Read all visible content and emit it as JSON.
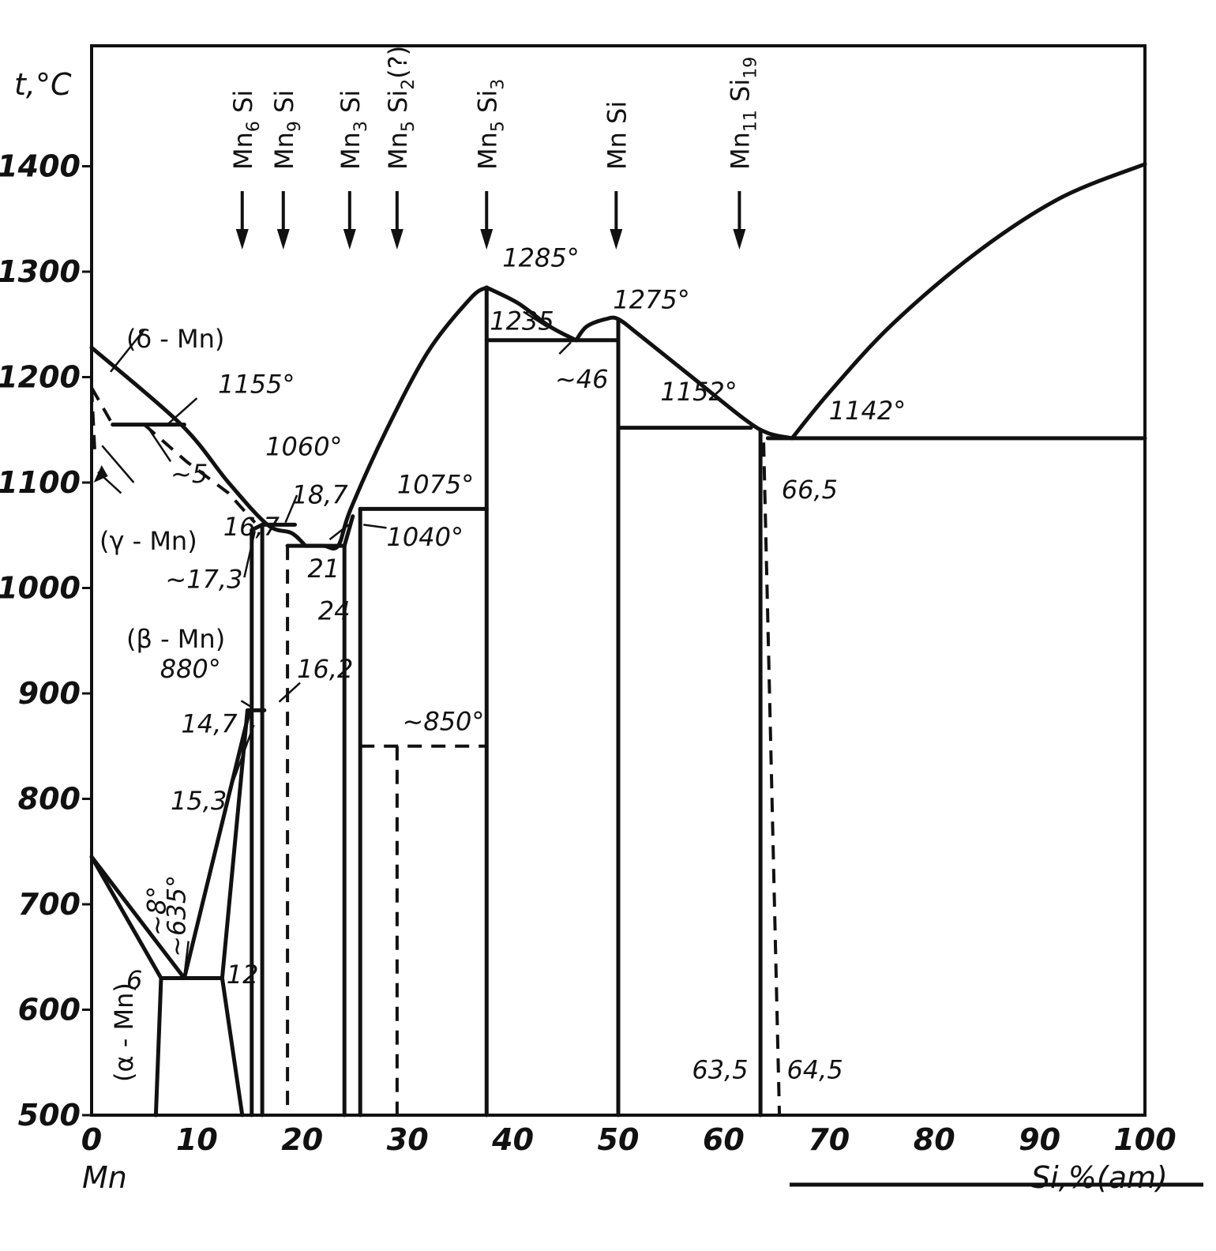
{
  "chart_data": {
    "type": "phase-diagram",
    "ylabel": "t,°C",
    "xlabel_left": "Mn",
    "xlabel_right": "Si,%(am)",
    "xlim": [
      0,
      100
    ],
    "ylim": [
      500,
      1500
    ],
    "x_ticks": [
      0,
      10,
      20,
      30,
      40,
      50,
      60,
      70,
      80,
      90,
      100
    ],
    "y_ticks": [
      500,
      600,
      700,
      800,
      900,
      1000,
      1100,
      1200,
      1300,
      1400
    ],
    "compounds": [
      {
        "label": "Mn6 Si",
        "main": "Mn",
        "sub1": "6",
        "mid": " Si",
        "sub2": "",
        "tail": "",
        "x": 14.3
      },
      {
        "label": "Mn9 Si",
        "main": "Mn",
        "sub1": "9",
        "mid": " Si",
        "sub2": "",
        "tail": "",
        "x": 18.2
      },
      {
        "label": "Mn3 Si",
        "main": "Mn",
        "sub1": "3",
        "mid": " Si",
        "sub2": "",
        "tail": "",
        "x": 24.5
      },
      {
        "label": "Mn5 Si2 (?)",
        "main": "Mn",
        "sub1": "5",
        "mid": " Si",
        "sub2": "2",
        "tail": "(?)",
        "x": 29
      },
      {
        "label": "Mn5 Si3",
        "main": "Mn",
        "sub1": "5",
        "mid": " Si",
        "sub2": "3",
        "tail": "",
        "x": 37.5
      },
      {
        "label": "Mn Si",
        "main": "Mn",
        "sub1": "",
        "mid": " Si",
        "sub2": "",
        "tail": "",
        "x": 49.8
      },
      {
        "label": "Mn11 Si19",
        "main": "Mn",
        "sub1": "11",
        "mid": " Si",
        "sub2": "19",
        "tail": "",
        "x": 61.5
      }
    ],
    "phases": [
      "(δ - Mn)",
      "(γ - Mn)",
      "(β - Mn)",
      "(α - Mn)"
    ],
    "annotations": [
      {
        "text": "1155°",
        "x": 12,
        "y": 1185
      },
      {
        "text": "~5",
        "x": 7.5,
        "y": 1100
      },
      {
        "text": "16,7",
        "x": 12.5,
        "y": 1050
      },
      {
        "text": "1060°",
        "x": 16.5,
        "y": 1126
      },
      {
        "text": "18,7",
        "x": 19,
        "y": 1080
      },
      {
        "text": "~17,3",
        "x": 7,
        "y": 1000
      },
      {
        "text": "21",
        "x": 20.5,
        "y": 1010
      },
      {
        "text": "24",
        "x": 21.5,
        "y": 970
      },
      {
        "text": "1075°",
        "x": 29,
        "y": 1090
      },
      {
        "text": "1040°",
        "x": 28,
        "y": 1040
      },
      {
        "text": "880°",
        "x": 6.5,
        "y": 915
      },
      {
        "text": "14,7",
        "x": 8.5,
        "y": 863
      },
      {
        "text": "16,2",
        "x": 19.5,
        "y": 915
      },
      {
        "text": "15,3",
        "x": 7.5,
        "y": 790
      },
      {
        "text": "~850°",
        "x": 29.5,
        "y": 865
      },
      {
        "text": "1285°",
        "x": 39,
        "y": 1305
      },
      {
        "text": "1235",
        "x": 37.8,
        "y": 1245
      },
      {
        "text": "~46",
        "x": 44,
        "y": 1190
      },
      {
        "text": "1275°",
        "x": 49.5,
        "y": 1265
      },
      {
        "text": "1152°",
        "x": 54,
        "y": 1178
      },
      {
        "text": "1142°",
        "x": 70,
        "y": 1160
      },
      {
        "text": "66,5",
        "x": 65.5,
        "y": 1085
      },
      {
        "text": "~8°",
        "x": 7,
        "y": 670
      },
      {
        "text": "~635°",
        "x": 8.9,
        "y": 650
      },
      {
        "text": "6",
        "x": 3.3,
        "y": 620
      },
      {
        "text": "12",
        "x": 12.8,
        "y": 625
      },
      {
        "text": "63,5",
        "x": 57,
        "y": 535
      },
      {
        "text": "64,5",
        "x": 66,
        "y": 535
      }
    ]
  }
}
